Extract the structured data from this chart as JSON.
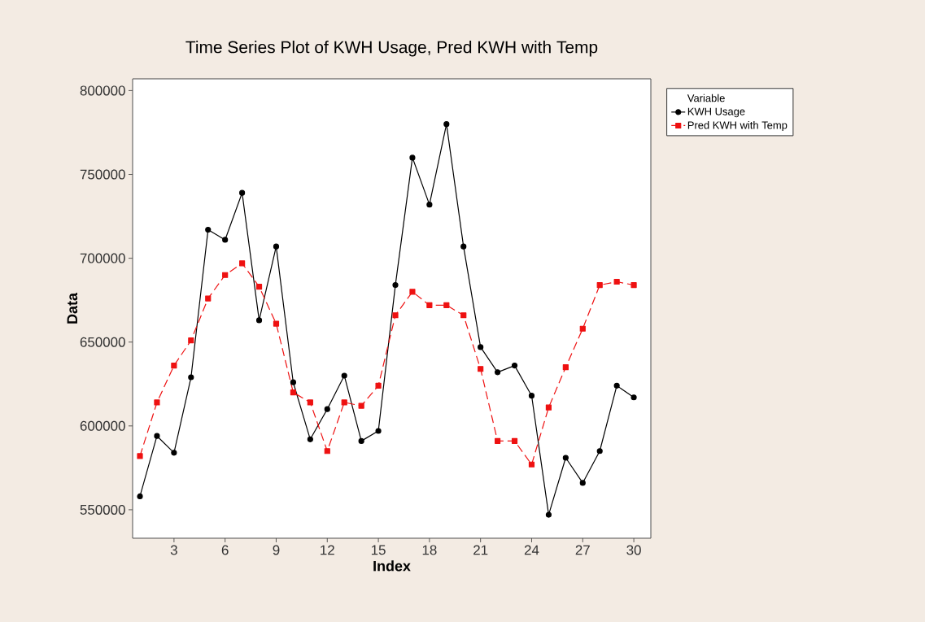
{
  "chart_data": {
    "type": "line",
    "title": "Time Series Plot of KWH Usage, Pred KWH with Temp",
    "xlabel": "Index",
    "ylabel": "Data",
    "legend_title": "Variable",
    "legend": "right",
    "x": [
      1,
      2,
      3,
      4,
      5,
      6,
      7,
      8,
      9,
      10,
      11,
      12,
      13,
      14,
      15,
      16,
      17,
      18,
      19,
      20,
      21,
      22,
      23,
      24,
      25,
      26,
      27,
      28,
      29,
      30
    ],
    "series": [
      {
        "name": "KWH Usage",
        "color": "#000000",
        "marker": "circle",
        "line_style": "solid",
        "values": [
          558000,
          594000,
          584000,
          629000,
          717000,
          711000,
          739000,
          663000,
          707000,
          626000,
          592000,
          610000,
          630000,
          591000,
          597000,
          684000,
          760000,
          732000,
          780000,
          707000,
          647000,
          632000,
          636000,
          618000,
          547000,
          581000,
          566000,
          585000,
          624000,
          617000
        ]
      },
      {
        "name": "Pred KWH with Temp",
        "color": "#ee1111",
        "marker": "square",
        "line_style": "dashed",
        "values": [
          582000,
          614000,
          636000,
          651000,
          676000,
          690000,
          697000,
          683000,
          661000,
          620000,
          614000,
          585000,
          614000,
          612000,
          624000,
          666000,
          680000,
          672000,
          672000,
          666000,
          634000,
          591000,
          591000,
          577000,
          611000,
          635000,
          658000,
          684000,
          686000,
          684000
        ]
      }
    ],
    "xlim": [
      0.57,
      31.0
    ],
    "ylim": [
      533000,
      807000
    ],
    "xticks": [
      3,
      6,
      9,
      12,
      15,
      18,
      21,
      24,
      27,
      30
    ],
    "yticks": [
      550000,
      600000,
      650000,
      700000,
      750000,
      800000
    ]
  }
}
